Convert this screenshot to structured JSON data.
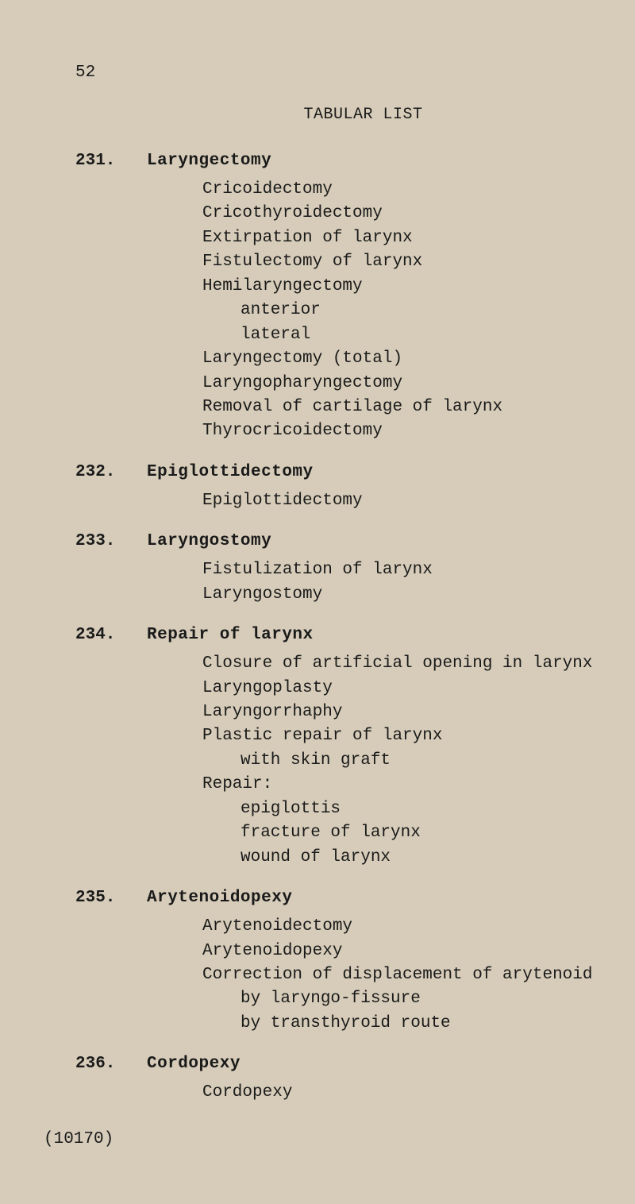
{
  "page_number": "52",
  "header": "TABULAR LIST",
  "footer": "(10170)",
  "entries": [
    {
      "num": "231.",
      "title": "Laryngectomy",
      "lines": [
        {
          "text": "Cricoidectomy",
          "indent": 0
        },
        {
          "text": "Cricothyroidectomy",
          "indent": 0
        },
        {
          "text": "Extirpation of larynx",
          "indent": 0
        },
        {
          "text": "Fistulectomy of larynx",
          "indent": 0
        },
        {
          "text": "Hemilaryngectomy",
          "indent": 0
        },
        {
          "text": "anterior",
          "indent": 1
        },
        {
          "text": "lateral",
          "indent": 1
        },
        {
          "text": "Laryngectomy (total)",
          "indent": 0
        },
        {
          "text": "Laryngopharyngectomy",
          "indent": 0
        },
        {
          "text": "Removal of cartilage of larynx",
          "indent": 0
        },
        {
          "text": "Thyrocricoidectomy",
          "indent": 0
        }
      ]
    },
    {
      "num": "232.",
      "title": "Epiglottidectomy",
      "lines": [
        {
          "text": "Epiglottidectomy",
          "indent": 0
        }
      ]
    },
    {
      "num": "233.",
      "title": "Laryngostomy",
      "lines": [
        {
          "text": "Fistulization of larynx",
          "indent": 0
        },
        {
          "text": "Laryngostomy",
          "indent": 0
        }
      ]
    },
    {
      "num": "234.",
      "title": "Repair of larynx",
      "lines": [
        {
          "text": "Closure of artificial opening in larynx",
          "indent": 0
        },
        {
          "text": "Laryngoplasty",
          "indent": 0
        },
        {
          "text": "Laryngorrhaphy",
          "indent": 0
        },
        {
          "text": "Plastic repair of larynx",
          "indent": 0
        },
        {
          "text": "with skin graft",
          "indent": 1
        },
        {
          "text": "Repair:",
          "indent": 0
        },
        {
          "text": "epiglottis",
          "indent": 1
        },
        {
          "text": "fracture of larynx",
          "indent": 1
        },
        {
          "text": "wound of larynx",
          "indent": 1
        }
      ]
    },
    {
      "num": "235.",
      "title": "Arytenoidopexy",
      "lines": [
        {
          "text": "Arytenoidectomy",
          "indent": 0
        },
        {
          "text": "Arytenoidopexy",
          "indent": 0
        },
        {
          "text": "Correction of displacement of arytenoid",
          "indent": 0
        },
        {
          "text": "by laryngo-fissure",
          "indent": 1
        },
        {
          "text": "by transthyroid route",
          "indent": 1
        }
      ]
    },
    {
      "num": "236.",
      "title": "Cordopexy",
      "lines": [
        {
          "text": "Cordopexy",
          "indent": 0
        }
      ]
    }
  ]
}
